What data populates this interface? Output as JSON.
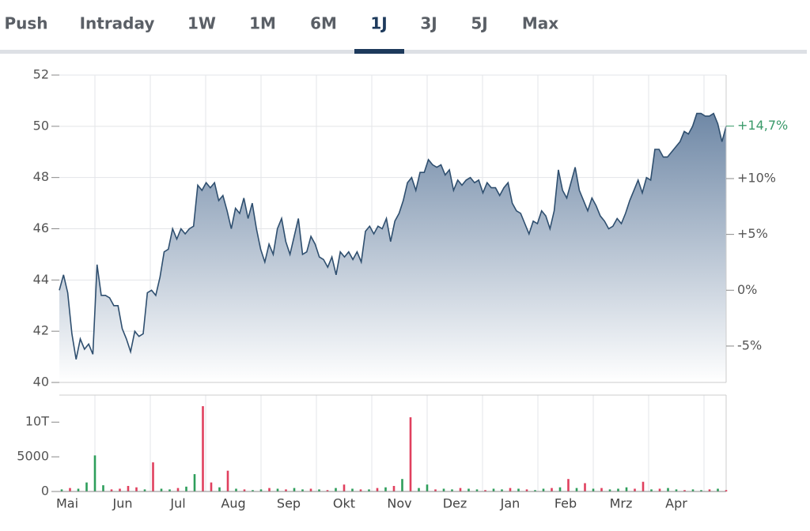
{
  "tabs": [
    "Push",
    "Intraday",
    "1W",
    "1M",
    "6M",
    "1J",
    "3J",
    "5J",
    "Max"
  ],
  "active_tab": "1J",
  "chart_data": [
    {
      "type": "line",
      "color": "#2f4f6f",
      "values": [
        43.6,
        44.2,
        43.5,
        41.9,
        40.9,
        41.7,
        41.3,
        41.5,
        41.1,
        44.6,
        43.4,
        43.4,
        43.3,
        43.0,
        43.0,
        42.1,
        41.7,
        41.2,
        42.0,
        41.8,
        41.9,
        43.5,
        43.6,
        43.4,
        44.1,
        45.1,
        45.2,
        46.0,
        45.6,
        46.0,
        45.8,
        46.0,
        46.1,
        47.7,
        47.5,
        47.8,
        47.6,
        47.8,
        47.1,
        47.3,
        46.7,
        46.0,
        46.8,
        46.6,
        47.2,
        46.4,
        47.0,
        46.0,
        45.2,
        44.7,
        45.4,
        45.0,
        46.0,
        46.4,
        45.5,
        45.0,
        45.7,
        46.4,
        45.0,
        45.1,
        45.7,
        45.4,
        44.9,
        44.8,
        44.5,
        44.9,
        44.2,
        45.1,
        44.9,
        45.1,
        44.8,
        45.1,
        44.7,
        45.9,
        46.1,
        45.8,
        46.1,
        46.0,
        46.4,
        45.5,
        46.3,
        46.6,
        47.1,
        47.8,
        48.0,
        47.5,
        48.2,
        48.2,
        48.7,
        48.5,
        48.4,
        48.5,
        48.1,
        48.3,
        47.5,
        47.9,
        47.7,
        47.9,
        48.0,
        47.8,
        47.9,
        47.4,
        47.8,
        47.6,
        47.6,
        47.3,
        47.6,
        47.8,
        47.0,
        46.7,
        46.6,
        46.2,
        45.8,
        46.3,
        46.2,
        46.7,
        46.5,
        46.0,
        46.7,
        48.3,
        47.5,
        47.2,
        47.8,
        48.4,
        47.5,
        47.1,
        46.7,
        47.2,
        46.9,
        46.5,
        46.3,
        46.0,
        46.1,
        46.4,
        46.2,
        46.6,
        47.1,
        47.5,
        47.9,
        47.4,
        48.0,
        47.9,
        49.1,
        49.1,
        48.8,
        48.8,
        49.0,
        49.2,
        49.4,
        49.8,
        49.7,
        50.0,
        50.5,
        50.5,
        50.4,
        50.4,
        50.5,
        50.1,
        49.4,
        50.0
      ],
      "ylim": [
        40,
        52
      ],
      "yticks": [
        40,
        42,
        44,
        46,
        48,
        50,
        52
      ],
      "y2lim": [
        -8.26,
        19.27
      ],
      "y2ticks": [
        {
          "value": -5,
          "label": "-5%"
        },
        {
          "value": 0,
          "label": "0%"
        },
        {
          "value": 5,
          "label": "+5%"
        },
        {
          "value": 10,
          "label": "+10%"
        }
      ],
      "last_change": {
        "value": 14.7,
        "label": "+14,7%"
      },
      "last_change_color": "#3a9a6a",
      "grid": true
    },
    {
      "type": "bar",
      "values": [
        300,
        500,
        400,
        1300,
        5200,
        900,
        300,
        400,
        800,
        600,
        300,
        4200,
        400,
        300,
        500,
        700,
        2500,
        12300,
        1300,
        600,
        3000,
        400,
        300,
        200,
        300,
        500,
        400,
        300,
        500,
        300,
        400,
        300,
        200,
        500,
        1000,
        400,
        300,
        300,
        500,
        600,
        800,
        1800,
        10700,
        500,
        1000,
        300,
        400,
        300,
        500,
        400,
        300,
        200,
        400,
        300,
        500,
        400,
        300,
        200,
        400,
        500,
        600,
        1800,
        500,
        1200,
        400,
        500,
        300,
        400,
        600,
        400,
        1400,
        300,
        400,
        500,
        300,
        200,
        300,
        200,
        300,
        400,
        200
      ],
      "colors": [
        "#2e9e5b",
        "#e0405e",
        "#2e9e5b",
        "#2e9e5b",
        "#2e9e5b",
        "#2e9e5b",
        "#e0405e",
        "#e0405e",
        "#e0405e",
        "#e0405e",
        "#2e9e5b",
        "#e0405e",
        "#2e9e5b",
        "#2e9e5b",
        "#e0405e",
        "#2e9e5b",
        "#2e9e5b",
        "#e0405e",
        "#e0405e",
        "#2e9e5b",
        "#e0405e",
        "#2e9e5b",
        "#e0405e",
        "#2e9e5b",
        "#2e9e5b",
        "#e0405e",
        "#2e9e5b",
        "#e0405e",
        "#2e9e5b",
        "#2e9e5b",
        "#e0405e",
        "#2e9e5b",
        "#e0405e",
        "#2e9e5b",
        "#e0405e",
        "#2e9e5b",
        "#e0405e",
        "#2e9e5b",
        "#e0405e",
        "#2e9e5b",
        "#e0405e",
        "#2e9e5b",
        "#e0405e",
        "#2e9e5b",
        "#2e9e5b",
        "#e0405e",
        "#2e9e5b",
        "#2e9e5b",
        "#e0405e",
        "#2e9e5b",
        "#2e9e5b",
        "#e0405e",
        "#2e9e5b",
        "#2e9e5b",
        "#e0405e",
        "#2e9e5b",
        "#e0405e",
        "#2e9e5b",
        "#2e9e5b",
        "#e0405e",
        "#2e9e5b",
        "#e0405e",
        "#2e9e5b",
        "#e0405e",
        "#2e9e5b",
        "#e0405e",
        "#2e9e5b",
        "#2e9e5b",
        "#2e9e5b",
        "#e0405e",
        "#e0405e",
        "#2e9e5b",
        "#e0405e",
        "#2e9e5b",
        "#2e9e5b",
        "#e0405e",
        "#2e9e5b",
        "#2e9e5b",
        "#e0405e",
        "#2e9e5b",
        "#e0405e"
      ],
      "ylim": [
        0,
        13900
      ],
      "yticks": [
        0,
        5000,
        {
          "value": 10000,
          "label": "10T"
        }
      ],
      "months": [
        "Mai",
        "Jun",
        "Jul",
        "Aug",
        "Sep",
        "Okt",
        "Nov",
        "Dez",
        "Jan",
        "Feb",
        "Mrz",
        "Apr"
      ]
    }
  ]
}
